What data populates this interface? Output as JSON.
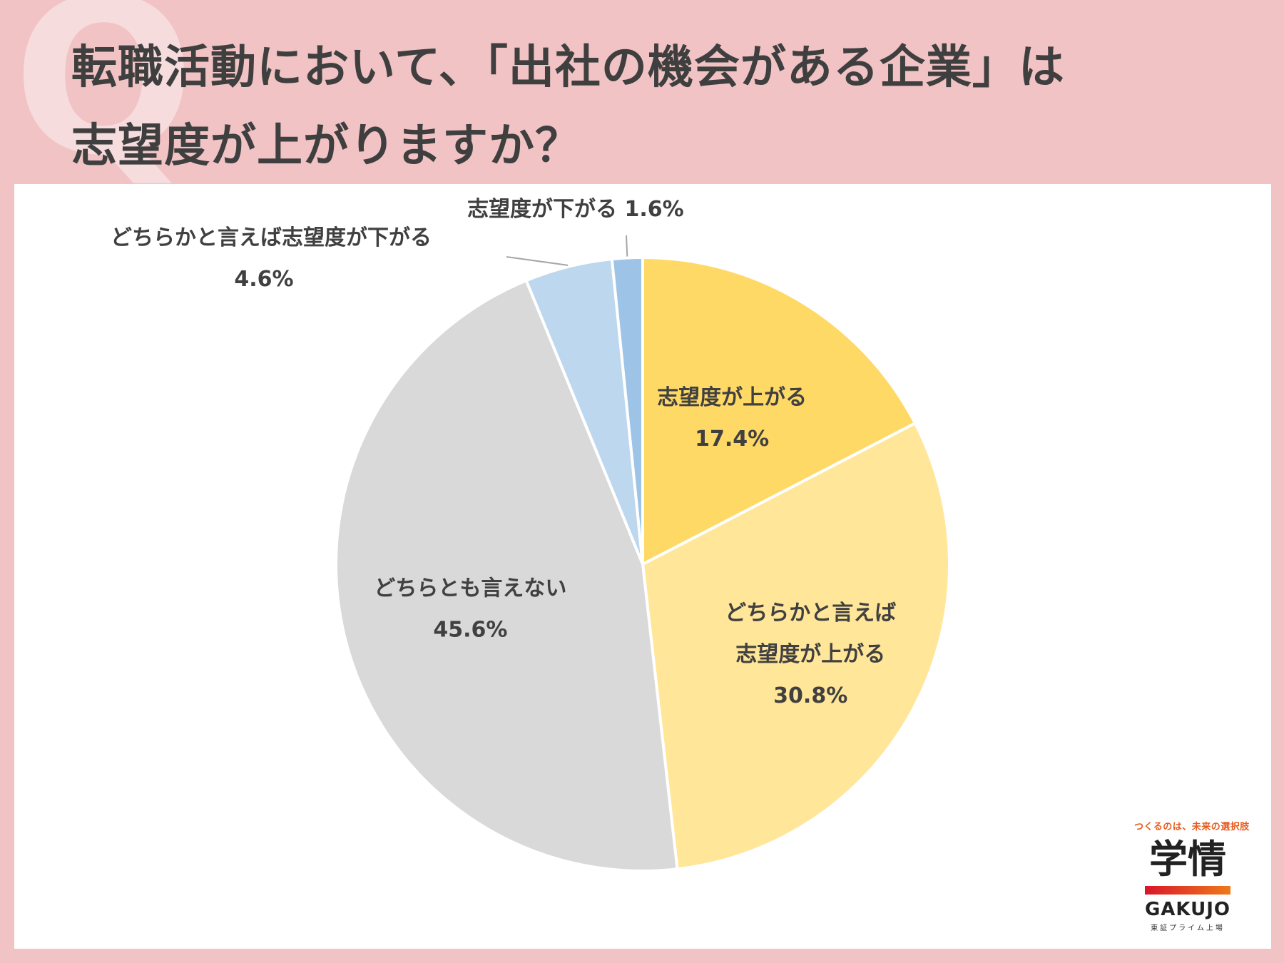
{
  "header": {
    "title_line1": "転職活動において、「出社の機会がある企業」は",
    "title_line2": "志望度が上がりますか？"
  },
  "chart_data": {
    "type": "pie",
    "start_angle_deg": 0,
    "direction": "clockwise",
    "slices": [
      {
        "label_lines": [
          "志望度が上がる"
        ],
        "value": 17.4,
        "value_label": "17.4%",
        "color": "#ffd966"
      },
      {
        "label_lines": [
          "どちらかと言えば",
          "志望度が上がる"
        ],
        "value": 30.8,
        "value_label": "30.8%",
        "color": "#ffe699"
      },
      {
        "label_lines": [
          "どちらとも言えない"
        ],
        "value": 45.6,
        "value_label": "45.6%",
        "color": "#d9d9d9"
      },
      {
        "label_lines": [
          "どちらかと言えば志望度が下がる"
        ],
        "value": 4.6,
        "value_label": "4.6%",
        "color": "#bdd7ee"
      },
      {
        "label_lines": [
          "志望度が下がる"
        ],
        "value": 1.6,
        "value_label": "1.6%",
        "color": "#9dc3e6"
      }
    ]
  },
  "logo": {
    "tagline": "つくるのは、未来の選択肢",
    "kanji": "学情",
    "name": "GAKUJO",
    "sub": "東証プライム上場"
  }
}
